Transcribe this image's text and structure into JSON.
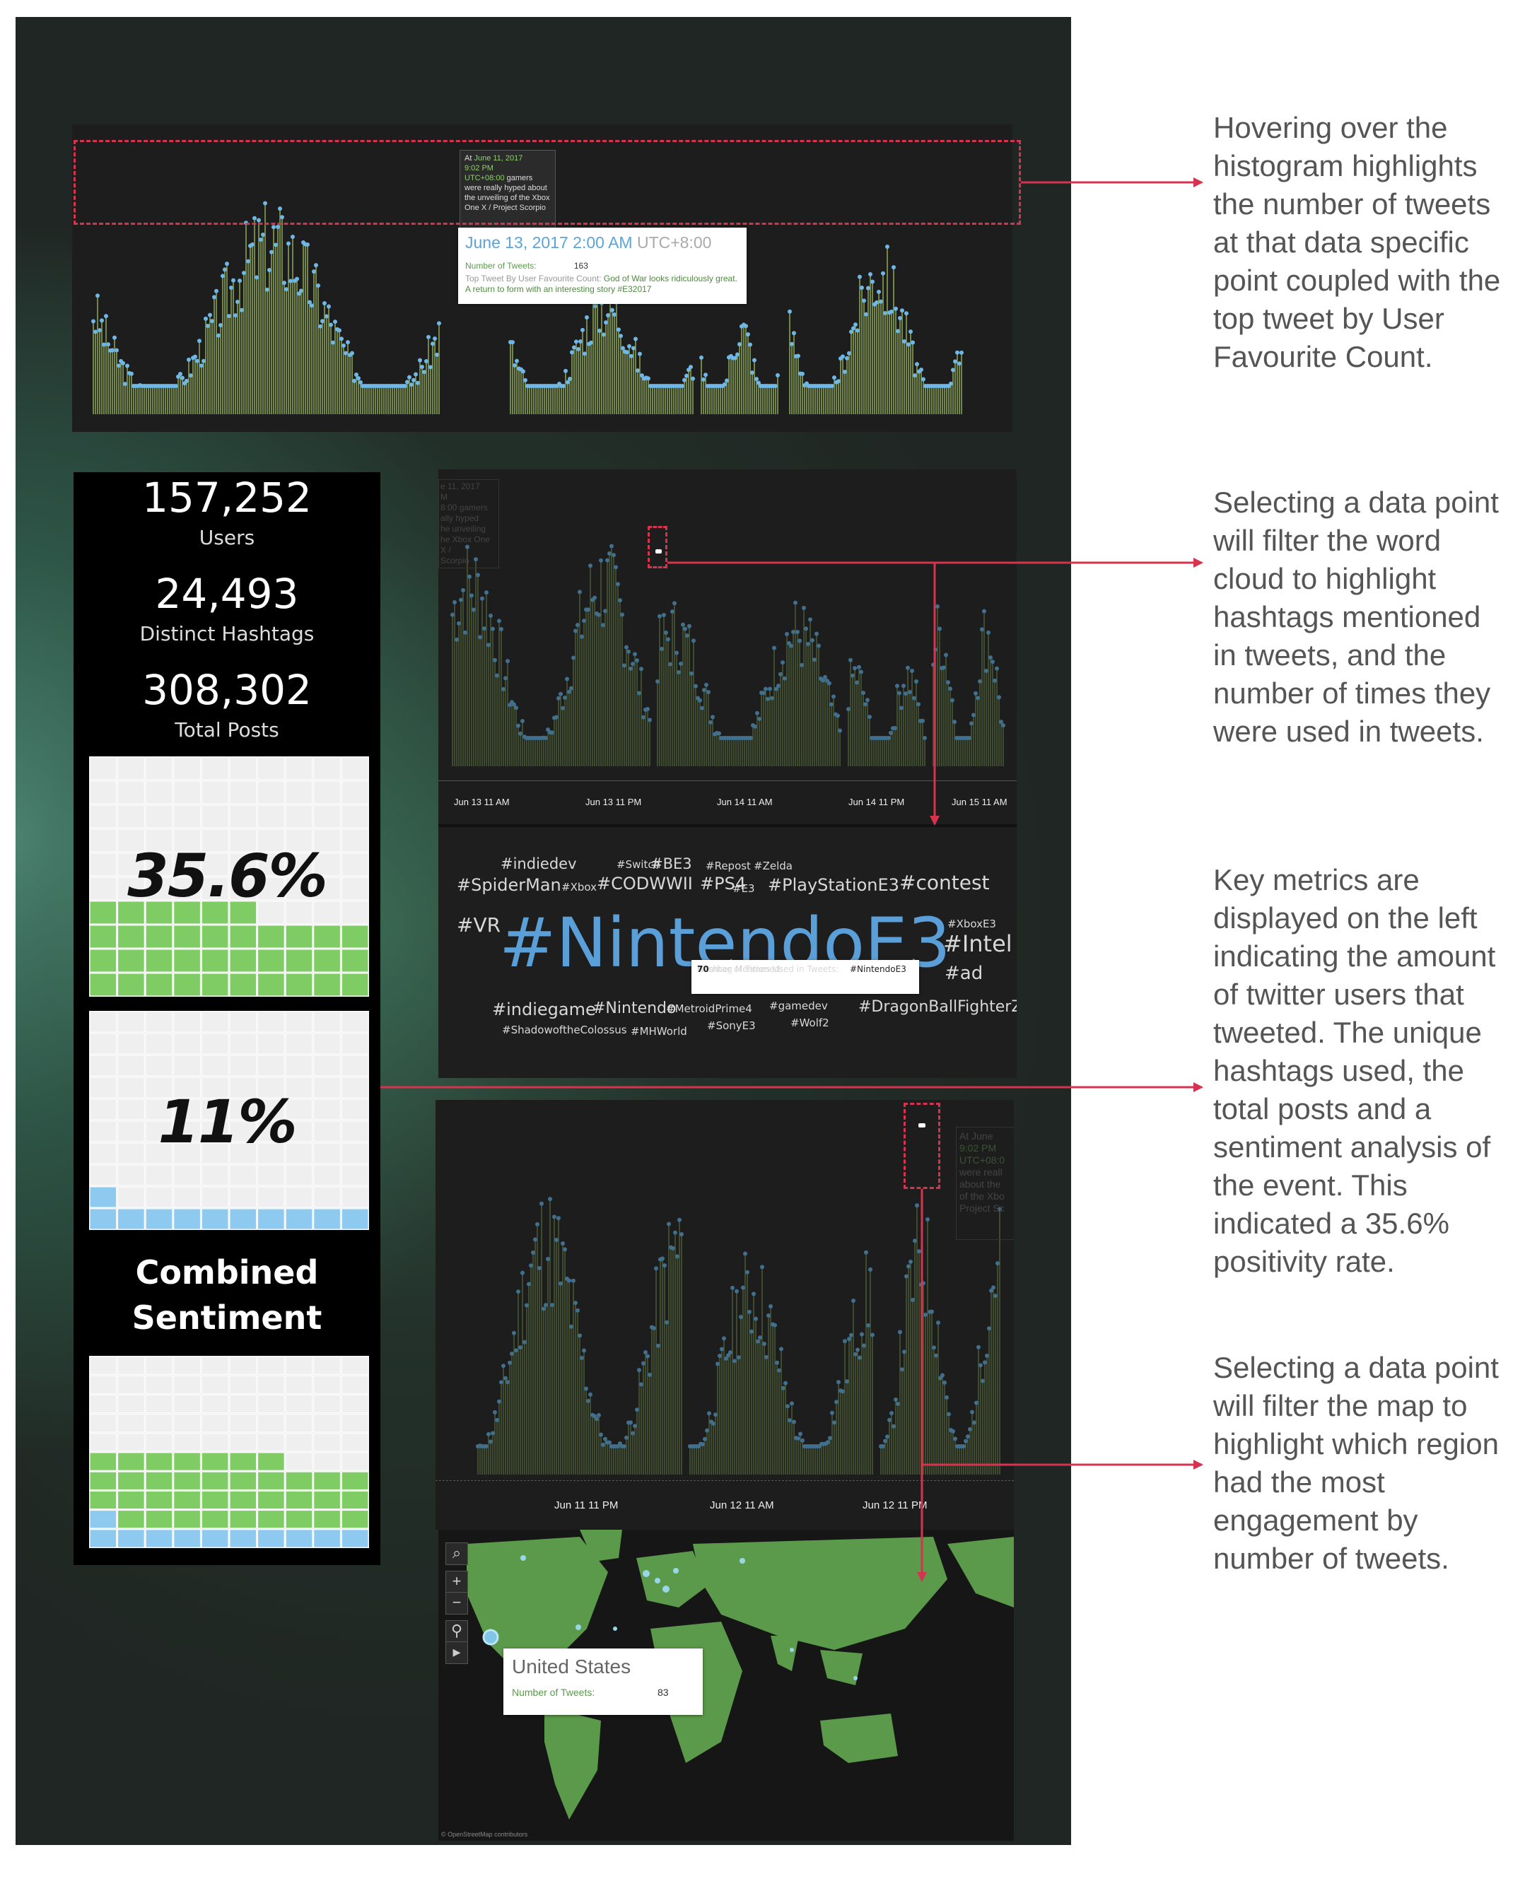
{
  "annotations": [
    "Hovering over the histogram highlights the number of tweets at that data specific point coupled with the top tweet by User Favourite Count.",
    "Selecting a data point will filter the word cloud to highlight hashtags mentioned in tweets, and the number of times they were used in tweets.",
    "Key metrics are displayed on the left indicating the amount of twitter users that tweeted. The unique hashtags used, the total posts and a sentiment analysis of the event. This indicated a 35.6% positivity rate.",
    "Selecting a data point will filter the map to highlight which region had the most engagement by number of tweets."
  ],
  "top_chart": {
    "tooltip_small": {
      "at": "At",
      "date": "June 11, 2017",
      "time": "9:02 PM",
      "tz": "UTC+08:00",
      "text": "gamers were really hyped about the unveiling of the Xbox One X / Project Scorpio"
    },
    "tooltip_main": {
      "datetime": "June 13, 2017 2:00 AM",
      "tz": "UTC+8:00",
      "count_label": "Number of Tweets:",
      "count_value": "163",
      "top_label": "Top Tweet By User Favourite Count:",
      "top_text": "God of War looks ridiculously great. A return to form with an interesting story #E32017"
    }
  },
  "metrics": {
    "users_value": "157,252",
    "users_label": "Users",
    "hashtags_value": "24,493",
    "hashtags_label": "Distinct Hashtags",
    "posts_value": "308,302",
    "posts_label": "Total Posts",
    "positive_pct": "35.6%",
    "positive_fraction": 0.356,
    "negative_pct": "11%",
    "negative_fraction": 0.11,
    "combined_title_1": "Combined",
    "combined_title_2": "Sentiment"
  },
  "colors": {
    "green": "#7fcc64",
    "blue": "#8ec9f0",
    "accent_red": "#d6334f",
    "bar_olive": "#8faa55",
    "point_blue": "#6fb7e6"
  },
  "middle_chart": {
    "ghost_tooltip": [
      "e 11, 2017",
      "M",
      "8:00 gamers",
      "ally hyped",
      "he unveiling",
      "he Xbox One X /",
      "Scorpio"
    ],
    "x_ticks": [
      "Jun 13 11 AM",
      "Jun 13 11 PM",
      "Jun 14 11 AM",
      "Jun 14 11 PM",
      "Jun 15 11 AM"
    ]
  },
  "word_cloud": {
    "words": [
      "#indiedev",
      "#Switch",
      "#BE3",
      "#Repost",
      "#Zelda",
      "#SpiderMan",
      "#Xbox",
      "#CODWWII",
      "#PS4",
      "#E3",
      "#PlayStationE3",
      "#contest",
      "#VR",
      "#NintendoE3",
      "#XboxE3",
      "#Intel",
      "#ad",
      "#indiegame",
      "#Nintendo",
      "#MetroidPrime4",
      "#gamedev",
      "#DragonBallFighterZ",
      "#ShadowoftheColossus",
      "#MHWorld",
      "#SonyE3",
      "#Wolf2"
    ],
    "tooltip": {
      "label1": "Hashtag Mentioned:",
      "value1": "#NintendoE3",
      "label2": "Number of Times Used in Tweets:",
      "value2": "70"
    }
  },
  "bottom_chart": {
    "ghost_tooltip": [
      "At June",
      "9:02 PM",
      "UTC+08:0",
      "were reall",
      "about the",
      "of the Xbo",
      "Project Sc"
    ],
    "x_ticks": [
      "Jun 11 11 PM",
      "Jun 12 11 AM",
      "Jun 12 11 PM"
    ]
  },
  "map": {
    "tooltip": {
      "country": "United States",
      "label": "Number of Tweets:",
      "value": "83"
    },
    "credit": "© OpenStreetMap contributors",
    "controls": [
      "⌕",
      "+",
      "−",
      "⚲",
      "▸"
    ]
  }
}
